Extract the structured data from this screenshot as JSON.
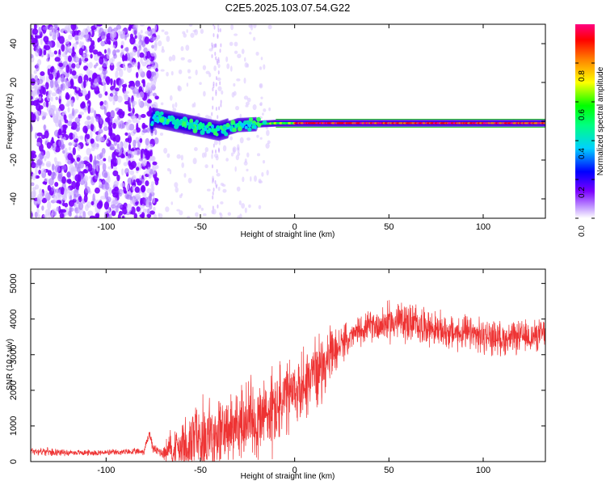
{
  "title": "C2E5.2025.103.07.54.G22",
  "chart_data": [
    {
      "type": "heatmap",
      "title": "C2E5.2025.103.07.54.G22",
      "xlabel": "Height of straight line (km)",
      "ylabel": "Frequency (Hz)",
      "xlim": [
        -140,
        133
      ],
      "ylim": [
        -50,
        50
      ],
      "xticks": [
        -100,
        -50,
        0,
        50,
        100
      ],
      "yticks": [
        -40,
        -20,
        0,
        20,
        40
      ],
      "colorbar": {
        "label": "Normalized spectral amplitude",
        "range": [
          0,
          1
        ],
        "ticks": [
          "0.0",
          "0.2",
          "0.4",
          "0.6",
          "0.8"
        ],
        "tick_values": [
          0,
          0.2,
          0.4,
          0.6,
          0.8
        ],
        "colors": [
          "#ffffff",
          "#7a00ff",
          "#0000ff",
          "#00ffff",
          "#00ff00",
          "#ffff00",
          "#ff8000",
          "#ff0000",
          "#ff0080"
        ]
      },
      "signal": {
        "description_free": true,
        "center_freq_hz": [
          [
            -75,
            2
          ],
          [
            -60,
            -1
          ],
          [
            -45,
            -4
          ],
          [
            -40,
            -5
          ],
          [
            -30,
            -2
          ],
          [
            -10,
            -1
          ],
          [
            0,
            -1
          ],
          [
            50,
            -1
          ],
          [
            133,
            -1
          ]
        ],
        "noise_region_km": [
          -140,
          -73
        ],
        "green_band_hz": [
          -3,
          0
        ]
      }
    },
    {
      "type": "line",
      "xlabel": "Height of straight line (km)",
      "ylabel": "SNR (10 * v/v)",
      "xlim": [
        -140,
        133
      ],
      "ylim": [
        0,
        5400
      ],
      "xticks": [
        -100,
        -50,
        0,
        50,
        100
      ],
      "yticks": [
        0,
        1000,
        2000,
        3000,
        4000,
        5000
      ],
      "series": [
        {
          "name": "SNR",
          "color": "#ee3333",
          "envelope_x": [
            -140,
            -120,
            -100,
            -80,
            -77,
            -75,
            -70,
            -65,
            -60,
            -55,
            -50,
            -45,
            -40,
            -35,
            -30,
            -25,
            -20,
            -15,
            -10,
            -5,
            0,
            5,
            10,
            15,
            20,
            25,
            30,
            35,
            40,
            45,
            50,
            55,
            60,
            65,
            70,
            75,
            80,
            85,
            90,
            95,
            100,
            105,
            110,
            115,
            120,
            125,
            133
          ],
          "mean": [
            300,
            250,
            250,
            280,
            800,
            350,
            250,
            350,
            450,
            600,
            700,
            800,
            800,
            900,
            1000,
            1100,
            1200,
            1300,
            1500,
            1700,
            1900,
            2200,
            2500,
            2700,
            3000,
            3300,
            3500,
            3700,
            3800,
            3850,
            3900,
            3950,
            3900,
            3850,
            3800,
            3700,
            3650,
            3600,
            3600,
            3550,
            3500,
            3500,
            3450,
            3450,
            3500,
            3500,
            3600
          ],
          "spread": [
            150,
            100,
            100,
            120,
            200,
            150,
            200,
            800,
            1200,
            1400,
            1300,
            1300,
            1200,
            1100,
            1300,
            1500,
            1600,
            1600,
            1500,
            1400,
            1200,
            1300,
            1200,
            1100,
            900,
            600,
            500,
            500,
            500,
            600,
            700,
            700,
            700,
            700,
            600,
            600,
            600,
            600,
            600,
            600,
            600,
            600,
            550,
            550,
            550,
            550,
            500
          ]
        }
      ]
    }
  ]
}
